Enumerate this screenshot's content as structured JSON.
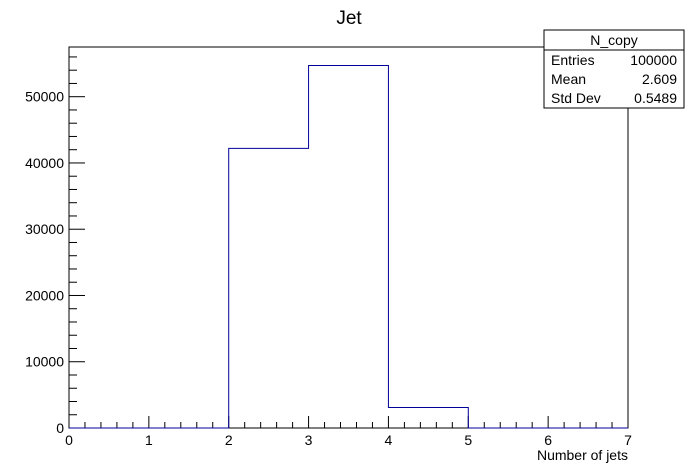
{
  "chart_data": {
    "type": "bar",
    "title": "Jet",
    "xlabel": "Number of jets",
    "ylabel": "",
    "xlim": [
      0,
      7
    ],
    "ylim": [
      0,
      57500
    ],
    "bin_edges": [
      0,
      1,
      2,
      3,
      4,
      5,
      6,
      7
    ],
    "values": [
      0,
      0,
      42200,
      54700,
      3100,
      0,
      0
    ],
    "x_ticks": [
      "0",
      "1",
      "2",
      "3",
      "4",
      "5",
      "6",
      "7"
    ],
    "y_ticks": [
      "0",
      "10000",
      "20000",
      "30000",
      "40000",
      "50000"
    ],
    "line_color": "#000099",
    "grid": false,
    "stats": {
      "name": "N_copy",
      "entries_label": "Entries",
      "entries_value": "100000",
      "mean_label": "Mean",
      "mean_value": "2.609",
      "std_label": "Std Dev",
      "std_value": "0.5489",
      "placement": "top-right"
    }
  }
}
